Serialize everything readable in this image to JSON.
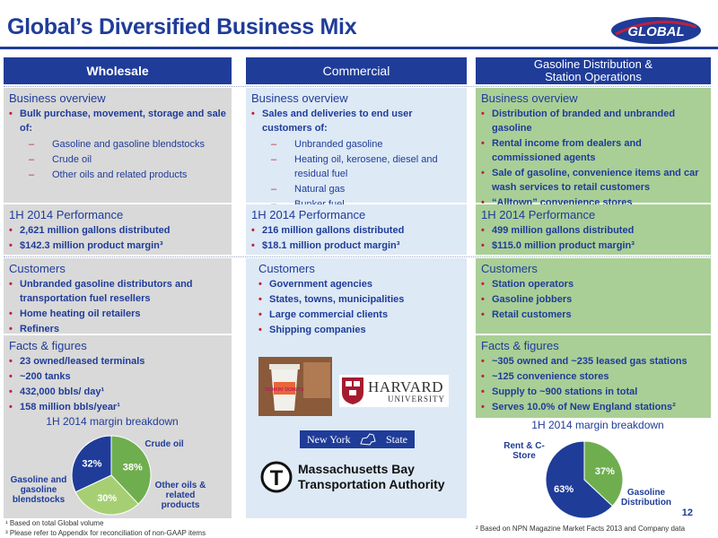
{
  "slide": {
    "title": "Global’s Diversified Business Mix",
    "logo_text": "GLOBAL",
    "page_number": "12"
  },
  "columns": {
    "wholesale": {
      "header": "Wholesale",
      "overview_title": "Business overview",
      "overview": [
        {
          "text": "Bulk purchase, movement, storage and sale of:",
          "sub": [
            "Gasoline and gasoline blendstocks",
            "Crude oil",
            "Other oils and related products"
          ]
        }
      ],
      "perf_title": "1H 2014 Performance",
      "perf": [
        "2,621 million gallons distributed",
        "$142.3 million product margin³"
      ],
      "customers_title": "Customers",
      "customers": [
        "Unbranded gasoline distributors and transportation fuel resellers",
        "Home heating oil retailers",
        "Refiners"
      ],
      "facts_title": "Facts & figures",
      "facts": [
        "23 owned/leased terminals",
        "~200 tanks",
        "432,000 bbls/ day¹",
        "158 million bbls/year¹"
      ],
      "pie_title": "1H 2014 margin breakdown",
      "pie_labels": [
        "Crude oil",
        "Other oils & related products",
        "Gasoline and gasoline blendstocks"
      ],
      "pie_values": [
        "38%",
        "30%",
        "32%"
      ]
    },
    "commercial": {
      "header": "Commercial",
      "overview_title": "Business overview",
      "overview": [
        {
          "text": "Sales and deliveries to end user customers of:",
          "sub": [
            "Unbranded gasoline",
            "Heating oil, kerosene, diesel and residual fuel",
            "Natural gas",
            "Bunker fuel"
          ]
        }
      ],
      "perf_title": "1H 2014 Performance",
      "perf": [
        "216 million gallons distributed",
        "$18.1 million product margin³"
      ],
      "customers_title": "Customers",
      "customers": [
        "Government agencies",
        "States, towns, municipalities",
        "Large commercial clients",
        "Shipping companies"
      ],
      "logos": {
        "harvard_line1": "HARVARD",
        "harvard_line2": "UNIVERSITY",
        "nys_left": "New York",
        "nys_right": "State",
        "mbta_line1": "Massachusetts Bay",
        "mbta_line2": "Transportation Authority",
        "mbta_letter": "T",
        "dunkin": "DUNKIN' DONUTS"
      }
    },
    "gasoline": {
      "header_line1": "Gasoline Distribution &",
      "header_line2": "Station Operations",
      "overview_title": "Business overview",
      "overview": [
        "Distribution of branded and unbranded gasoline",
        "Rental income from dealers and commissioned agents",
        "Sale of gasoline, convenience items and car wash services to retail customers",
        "“Alltown” convenience stores"
      ],
      "perf_title": "1H 2014 Performance",
      "perf": [
        "499 million gallons distributed",
        "$115.0 million product margin³"
      ],
      "customers_title": "Customers",
      "customers": [
        "Station operators",
        "Gasoline jobbers",
        "Retail customers"
      ],
      "facts_title": "Facts & figures",
      "facts": [
        "~305 owned and ~235 leased gas stations",
        "~125 convenience stores",
        "Supply to ~900 stations in total",
        "Serves 10.0% of New England stations²"
      ],
      "pie_title": "1H 2014 margin breakdown",
      "pie_labels": [
        "Rent & C-Store",
        "Gasoline Distribution"
      ],
      "pie_values": [
        "37%",
        "63%"
      ]
    }
  },
  "chart_data": [
    {
      "type": "pie",
      "title": "1H 2014 margin breakdown",
      "categories": [
        "Crude oil",
        "Other oils & related products",
        "Gasoline and gasoline blendstocks"
      ],
      "values": [
        38,
        30,
        32
      ],
      "colors": [
        "#6fae4f",
        "#a6cf74",
        "#1f3c99"
      ]
    },
    {
      "type": "pie",
      "title": "1H 2014 margin breakdown",
      "categories": [
        "Rent & C-Store",
        "Gasoline Distribution"
      ],
      "values": [
        37,
        63
      ],
      "colors": [
        "#6fae4f",
        "#1f3c99"
      ]
    }
  ],
  "footnotes": {
    "left1": "¹ Based on total Global volume",
    "left2": "³ Please refer to Appendix for reconciliation of non-GAAP items",
    "right1": "² Based on NPN Magazine Market Facts 2013 and Company data"
  },
  "colors": {
    "primary_blue": "#1f3c99",
    "bullet_red": "#c0203a",
    "grey_panel": "#d9d9d9",
    "blue_panel": "#dde9f5",
    "green_panel": "#a9cf96"
  }
}
